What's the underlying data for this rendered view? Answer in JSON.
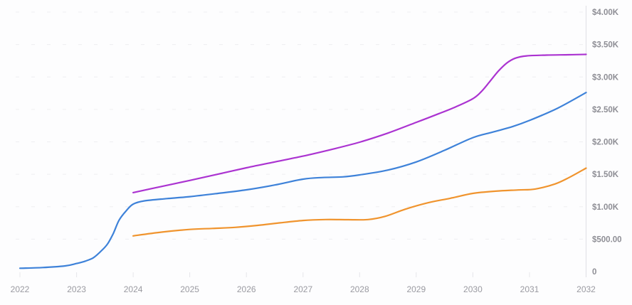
{
  "chart_data": {
    "type": "line",
    "title": "",
    "xlabel": "",
    "ylabel": "",
    "legend": "none",
    "grid": "horizontal-dashed",
    "xlim": [
      2022,
      2032
    ],
    "ylim": [
      0,
      4000
    ],
    "x_axis": {
      "position": "bottom",
      "tick_values": [
        2022,
        2023,
        2024,
        2025,
        2026,
        2027,
        2028,
        2029,
        2030,
        2031,
        2032
      ],
      "labels": [
        "2022",
        "2023",
        "2024",
        "2025",
        "2026",
        "2027",
        "2028",
        "2029",
        "2030",
        "2031",
        "2032"
      ]
    },
    "y_axis": {
      "position": "right",
      "tick_values": [
        0,
        500,
        1000,
        1500,
        2000,
        2500,
        3000,
        3500,
        4000
      ],
      "labels": [
        "0",
        "$500.00",
        "$1.00K",
        "$1.50K",
        "$2.00K",
        "$2.50K",
        "$3.00K",
        "$3.50K",
        "$4.00K"
      ]
    },
    "series": [
      {
        "name": "series-blue",
        "color": "#3e82d9",
        "points": [
          [
            2022.0,
            52
          ],
          [
            2022.4,
            62
          ],
          [
            2022.8,
            88
          ],
          [
            2023.0,
            125
          ],
          [
            2023.15,
            160
          ],
          [
            2023.3,
            215
          ],
          [
            2023.45,
            330
          ],
          [
            2023.55,
            430
          ],
          [
            2023.65,
            590
          ],
          [
            2023.75,
            790
          ],
          [
            2023.87,
            930
          ],
          [
            2024.0,
            1040
          ],
          [
            2024.2,
            1090
          ],
          [
            2024.6,
            1125
          ],
          [
            2025.0,
            1155
          ],
          [
            2025.5,
            1205
          ],
          [
            2026.0,
            1260
          ],
          [
            2026.5,
            1335
          ],
          [
            2027.0,
            1425
          ],
          [
            2027.35,
            1450
          ],
          [
            2027.7,
            1460
          ],
          [
            2028.0,
            1490
          ],
          [
            2028.5,
            1565
          ],
          [
            2029.0,
            1690
          ],
          [
            2029.5,
            1870
          ],
          [
            2030.0,
            2065
          ],
          [
            2030.35,
            2150
          ],
          [
            2030.7,
            2235
          ],
          [
            2031.0,
            2330
          ],
          [
            2031.5,
            2520
          ],
          [
            2032.0,
            2760
          ]
        ]
      },
      {
        "name": "series-orange",
        "color": "#f0942e",
        "points": [
          [
            2024.0,
            550
          ],
          [
            2024.5,
            608
          ],
          [
            2025.0,
            650
          ],
          [
            2025.4,
            665
          ],
          [
            2025.8,
            682
          ],
          [
            2026.2,
            712
          ],
          [
            2026.6,
            752
          ],
          [
            2027.0,
            788
          ],
          [
            2027.4,
            802
          ],
          [
            2027.8,
            800
          ],
          [
            2028.15,
            802
          ],
          [
            2028.45,
            852
          ],
          [
            2028.8,
            960
          ],
          [
            2029.2,
            1060
          ],
          [
            2029.6,
            1130
          ],
          [
            2030.0,
            1205
          ],
          [
            2030.4,
            1240
          ],
          [
            2030.8,
            1258
          ],
          [
            2031.1,
            1272
          ],
          [
            2031.45,
            1350
          ],
          [
            2031.7,
            1450
          ],
          [
            2032.0,
            1595
          ]
        ]
      },
      {
        "name": "series-magenta",
        "color": "#ab33d1",
        "points": [
          [
            2024.0,
            1218
          ],
          [
            2024.5,
            1312
          ],
          [
            2025.0,
            1405
          ],
          [
            2025.5,
            1502
          ],
          [
            2026.0,
            1600
          ],
          [
            2026.5,
            1690
          ],
          [
            2027.0,
            1780
          ],
          [
            2027.5,
            1882
          ],
          [
            2028.0,
            1995
          ],
          [
            2028.5,
            2135
          ],
          [
            2029.0,
            2300
          ],
          [
            2029.4,
            2435
          ],
          [
            2029.7,
            2540
          ],
          [
            2030.0,
            2665
          ],
          [
            2030.15,
            2775
          ],
          [
            2030.3,
            2930
          ],
          [
            2030.45,
            3090
          ],
          [
            2030.6,
            3215
          ],
          [
            2030.75,
            3290
          ],
          [
            2030.95,
            3325
          ],
          [
            2031.3,
            3337
          ],
          [
            2031.7,
            3342
          ],
          [
            2032.0,
            3348
          ]
        ]
      }
    ],
    "style": {
      "background": "#fdfdfe",
      "axis_line_color": "#e3e3e7",
      "grid_color": "#eeeef1",
      "tick_color": "#e6e6ea",
      "x_label_color": "#9a9aa1",
      "y_label_color": "#8e8e95",
      "line_width": 2.2
    }
  }
}
